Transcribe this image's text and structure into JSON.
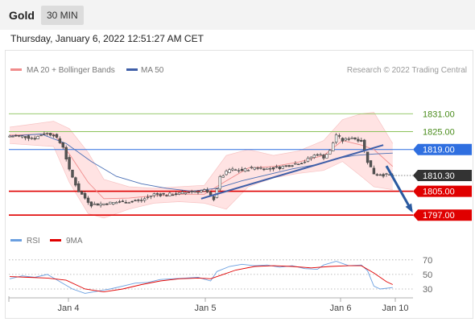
{
  "header": {
    "title": "Gold",
    "timeframe": "30 MIN"
  },
  "datetime": "Thursday, January 6, 2022 12:51:27 AM CET",
  "legend": {
    "ma20": "MA 20 + Bollinger Bands",
    "ma50": "MA 50",
    "credit": "Research © 2022 Trading Central",
    "rsi": "RSI",
    "ma9": "9MA"
  },
  "colors": {
    "candle_up": "#ffffff",
    "candle_down": "#555555",
    "bands": "#ffe3e3",
    "ma20": "#f08c8c",
    "ma50": "#4a6fb5",
    "resistance_green": "#8cc25a",
    "pivot": "#2f6fe0",
    "support": "#e00000",
    "last_price": "#333333",
    "trendline": "#3f5fa8",
    "arrow": "#2b5aa0"
  },
  "chart_data": [
    {
      "type": "candlestick",
      "title": "Gold",
      "ylim": [
        1793,
        1840
      ],
      "x_ticks": [
        "Jan 4",
        "Jan 5",
        "Jan 6",
        "Jan 10"
      ],
      "levels": [
        {
          "value": 1831.0,
          "label": "1831.00",
          "kind": "resistance"
        },
        {
          "value": 1825.0,
          "label": "1825.00",
          "kind": "resistance"
        },
        {
          "value": 1819.0,
          "label": "1819.00",
          "kind": "pivot"
        },
        {
          "value": 1810.3,
          "label": "1810.30",
          "kind": "last"
        },
        {
          "value": 1805.0,
          "label": "1805.00",
          "kind": "support"
        },
        {
          "value": 1797.0,
          "label": "1797.00",
          "kind": "support"
        }
      ],
      "close_path": [
        [
          0,
          1823.5
        ],
        [
          4,
          1823.4
        ],
        [
          8,
          1822.8
        ],
        [
          11,
          1824.5
        ],
        [
          14,
          1824.0
        ],
        [
          17,
          1820.0
        ],
        [
          19,
          1812.0
        ],
        [
          22,
          1805.0
        ],
        [
          26,
          1800.5
        ],
        [
          30,
          1800.8
        ],
        [
          34,
          1801.3
        ],
        [
          38,
          1801.5
        ],
        [
          42,
          1802.0
        ],
        [
          46,
          1804.0
        ],
        [
          50,
          1803.8
        ],
        [
          54,
          1804.2
        ],
        [
          58,
          1805.0
        ],
        [
          62,
          1805.3
        ],
        [
          65,
          1802.5
        ],
        [
          67,
          1809.5
        ],
        [
          70,
          1812.2
        ],
        [
          74,
          1812.0
        ],
        [
          78,
          1813.0
        ],
        [
          82,
          1812.6
        ],
        [
          86,
          1813.0
        ],
        [
          90,
          1814.0
        ],
        [
          94,
          1815.0
        ],
        [
          96,
          1816.5
        ],
        [
          98,
          1817.5
        ],
        [
          100,
          1816.5
        ],
        [
          102,
          1818.5
        ],
        [
          104,
          1824.0
        ],
        [
          106,
          1822.0
        ],
        [
          109,
          1823.0
        ],
        [
          112,
          1822.0
        ],
        [
          114,
          1815.0
        ],
        [
          116,
          1811.0
        ],
        [
          119,
          1810.5
        ],
        [
          122,
          1810.3
        ]
      ],
      "bollinger": {
        "upper": [
          [
            0,
            1826.5
          ],
          [
            14,
            1828.5
          ],
          [
            19,
            1826.0
          ],
          [
            25,
            1818.0
          ],
          [
            30,
            1809.0
          ],
          [
            38,
            1806.5
          ],
          [
            46,
            1806.0
          ],
          [
            54,
            1806.5
          ],
          [
            62,
            1807.0
          ],
          [
            69,
            1817.0
          ],
          [
            76,
            1819.0
          ],
          [
            84,
            1817.0
          ],
          [
            92,
            1818.5
          ],
          [
            100,
            1822.0
          ],
          [
            106,
            1829.0
          ],
          [
            112,
            1831.0
          ],
          [
            116,
            1831.5
          ],
          [
            122,
            1821.0
          ]
        ],
        "lower": [
          [
            0,
            1821.0
          ],
          [
            14,
            1820.0
          ],
          [
            19,
            1808.0
          ],
          [
            25,
            1797.5
          ],
          [
            30,
            1796.0
          ],
          [
            38,
            1799.0
          ],
          [
            46,
            1801.0
          ],
          [
            54,
            1801.5
          ],
          [
            62,
            1801.0
          ],
          [
            69,
            1799.0
          ],
          [
            76,
            1806.5
          ],
          [
            84,
            1809.5
          ],
          [
            92,
            1811.0
          ],
          [
            100,
            1812.0
          ],
          [
            106,
            1815.0
          ],
          [
            112,
            1810.0
          ],
          [
            116,
            1806.5
          ],
          [
            122,
            1805.5
          ]
        ],
        "mid": [
          [
            0,
            1823.8
          ],
          [
            14,
            1824.3
          ],
          [
            19,
            1817.5
          ],
          [
            25,
            1808.0
          ],
          [
            30,
            1802.5
          ],
          [
            38,
            1802.7
          ],
          [
            46,
            1803.5
          ],
          [
            54,
            1804.0
          ],
          [
            62,
            1804.0
          ],
          [
            69,
            1808.5
          ],
          [
            76,
            1812.8
          ],
          [
            84,
            1813.3
          ],
          [
            92,
            1814.8
          ],
          [
            100,
            1817.0
          ],
          [
            106,
            1822.0
          ],
          [
            112,
            1820.5
          ],
          [
            116,
            1819.0
          ],
          [
            122,
            1813.3
          ]
        ]
      },
      "ma50": [
        [
          0,
          1823.5
        ],
        [
          10,
          1824.2
        ],
        [
          18,
          1821.0
        ],
        [
          26,
          1815.0
        ],
        [
          34,
          1810.0
        ],
        [
          42,
          1807.5
        ],
        [
          50,
          1806.0
        ],
        [
          58,
          1805.0
        ],
        [
          66,
          1806.0
        ],
        [
          74,
          1808.5
        ],
        [
          82,
          1810.5
        ],
        [
          90,
          1812.5
        ],
        [
          98,
          1814.0
        ],
        [
          104,
          1816.0
        ],
        [
          110,
          1817.0
        ],
        [
          116,
          1817.5
        ],
        [
          122,
          1817.8
        ]
      ],
      "trendline": [
        [
          61,
          1802.5
        ],
        [
          119,
          1820.5
        ]
      ],
      "arrow": [
        [
          120,
          1813.5
        ],
        [
          128,
          1798.5
        ]
      ]
    },
    {
      "type": "line",
      "title": "RSI",
      "ylim": [
        20,
        82
      ],
      "y_ticks": [
        70,
        50,
        30
      ],
      "series": [
        {
          "name": "RSI",
          "values": [
            [
              0,
              44
            ],
            [
              4,
              48
            ],
            [
              8,
              46
            ],
            [
              12,
              50
            ],
            [
              16,
              40
            ],
            [
              20,
              30
            ],
            [
              24,
              24
            ],
            [
              28,
              27
            ],
            [
              32,
              30
            ],
            [
              36,
              34
            ],
            [
              40,
              38
            ],
            [
              44,
              39
            ],
            [
              48,
              43
            ],
            [
              52,
              44
            ],
            [
              56,
              45
            ],
            [
              60,
              46
            ],
            [
              64,
              41
            ],
            [
              66,
              54
            ],
            [
              70,
              61
            ],
            [
              74,
              64
            ],
            [
              78,
              62
            ],
            [
              82,
              63
            ],
            [
              86,
              60
            ],
            [
              90,
              62
            ],
            [
              94,
              58
            ],
            [
              98,
              57
            ],
            [
              100,
              63
            ],
            [
              104,
              68
            ],
            [
              108,
              62
            ],
            [
              112,
              63
            ],
            [
              114,
              55
            ],
            [
              116,
              34
            ],
            [
              118,
              30
            ],
            [
              122,
              32
            ]
          ]
        },
        {
          "name": "9MA",
          "values": [
            [
              0,
              47
            ],
            [
              6,
              46
            ],
            [
              12,
              45
            ],
            [
              18,
              42
            ],
            [
              24,
              30
            ],
            [
              30,
              26
            ],
            [
              36,
              30
            ],
            [
              42,
              36
            ],
            [
              48,
              41
            ],
            [
              54,
              44
            ],
            [
              60,
              45
            ],
            [
              64,
              44
            ],
            [
              68,
              50
            ],
            [
              72,
              56
            ],
            [
              78,
              61
            ],
            [
              84,
              62
            ],
            [
              90,
              61
            ],
            [
              96,
              59
            ],
            [
              102,
              61
            ],
            [
              108,
              62
            ],
            [
              112,
              62
            ],
            [
              116,
              52
            ],
            [
              120,
              40
            ],
            [
              122,
              36
            ]
          ]
        }
      ]
    }
  ]
}
